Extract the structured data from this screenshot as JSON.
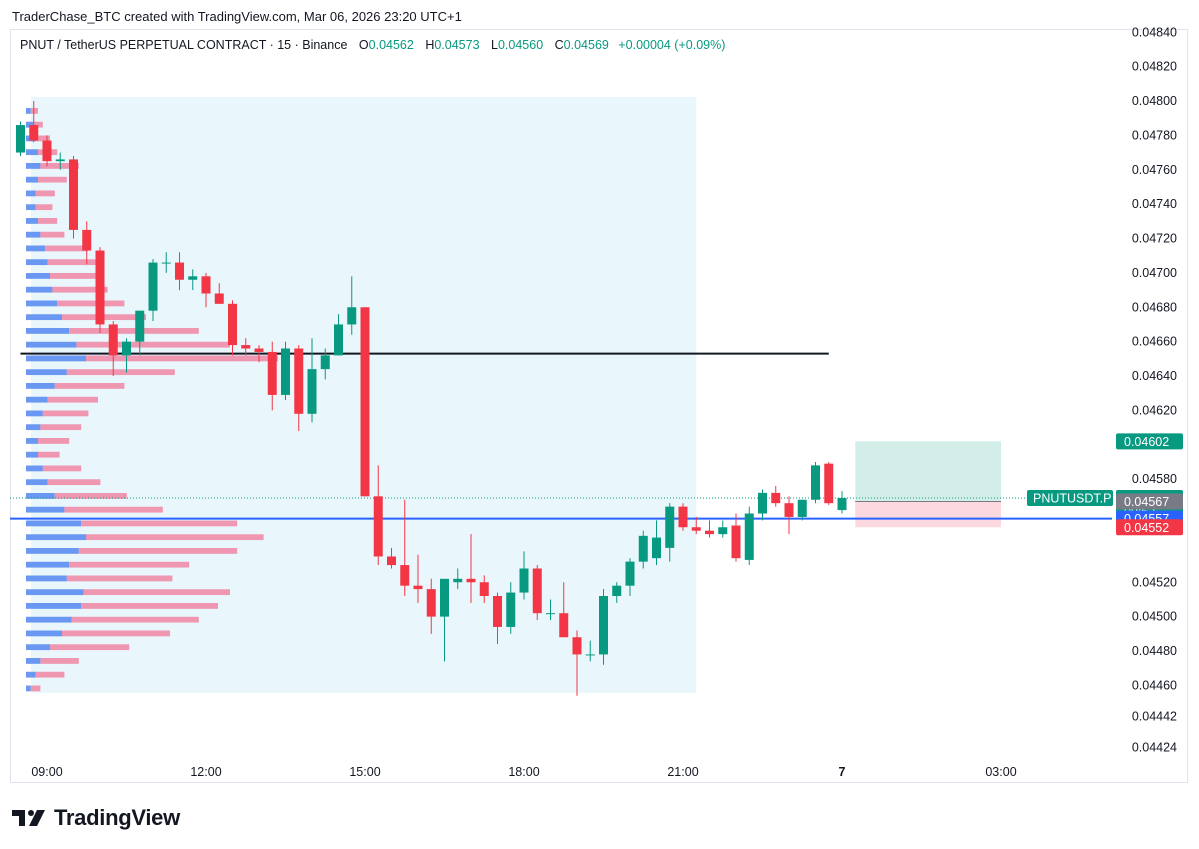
{
  "header": {
    "credit": "TraderChase_BTC created with TradingView.com, Mar 06, 2026 23:20 UTC+1"
  },
  "legend": {
    "symbol": "PNUT / TetherUS PERPETUAL CONTRACT · 15 · Binance",
    "open_label": "O",
    "open": "0.04562",
    "high_label": "H",
    "high": "0.04573",
    "low_label": "L",
    "low": "0.04560",
    "close_label": "C",
    "close": "0.04569",
    "change": "+0.00004 (+0.09%)"
  },
  "footer": {
    "brand": "TradingView",
    "logo_icon": "tradingview-logo-icon"
  },
  "colors": {
    "up": "#089981",
    "down": "#f23645",
    "blue_line": "#2962ff",
    "profile_blue": "#5b8def",
    "profile_pink": "#f08ca8",
    "profile_bg": "#e9f6fb",
    "target_zone": "#d3eee9",
    "stop_zone": "#fbd9de",
    "grey_tag": "#787b86"
  },
  "chart_data": {
    "type": "candlestick",
    "symbol": "PNUT / TetherUS PERPETUAL CONTRACT",
    "timeframe": "15",
    "exchange": "Binance",
    "y_axis": {
      "ticks": [
        "0.04840",
        "0.04820",
        "0.04800",
        "0.04780",
        "0.04760",
        "0.04740",
        "0.04720",
        "0.04700",
        "0.04680",
        "0.04660",
        "0.04640",
        "0.04620",
        "0.04580",
        "0.04520",
        "0.04500",
        "0.04480",
        "0.04460",
        "0.04442",
        "0.04424"
      ],
      "ylim": [
        0.04424,
        0.0484
      ]
    },
    "x_axis": {
      "ticks": [
        {
          "label": "09:00",
          "hours": 0
        },
        {
          "label": "12:00",
          "hours": 3
        },
        {
          "label": "15:00",
          "hours": 6
        },
        {
          "label": "18:00",
          "hours": 9
        },
        {
          "label": "21:00",
          "hours": 12
        },
        {
          "label": "7",
          "hours": 15,
          "bold": true
        },
        {
          "label": "03:00",
          "hours": 18
        }
      ]
    },
    "candles": [
      {
        "t": -0.5,
        "o": 0.0477,
        "h": 0.04788,
        "l": 0.04768,
        "c": 0.04786
      },
      {
        "t": -0.25,
        "o": 0.04786,
        "h": 0.048,
        "l": 0.04776,
        "c": 0.04777
      },
      {
        "t": 0,
        "o": 0.04777,
        "h": 0.0478,
        "l": 0.04762,
        "c": 0.04765
      },
      {
        "t": 0.25,
        "o": 0.04765,
        "h": 0.0477,
        "l": 0.0476,
        "c": 0.04766
      },
      {
        "t": 0.5,
        "o": 0.04766,
        "h": 0.04768,
        "l": 0.0472,
        "c": 0.04725
      },
      {
        "t": 0.75,
        "o": 0.04725,
        "h": 0.0473,
        "l": 0.04705,
        "c": 0.04713
      },
      {
        "t": 1,
        "o": 0.04713,
        "h": 0.04715,
        "l": 0.04665,
        "c": 0.0467
      },
      {
        "t": 1.25,
        "o": 0.0467,
        "h": 0.04672,
        "l": 0.0464,
        "c": 0.04652
      },
      {
        "t": 1.5,
        "o": 0.04652,
        "h": 0.04662,
        "l": 0.04642,
        "c": 0.0466
      },
      {
        "t": 1.75,
        "o": 0.0466,
        "h": 0.04678,
        "l": 0.04652,
        "c": 0.04678
      },
      {
        "t": 2,
        "o": 0.04678,
        "h": 0.04708,
        "l": 0.04672,
        "c": 0.04706
      },
      {
        "t": 2.25,
        "o": 0.04706,
        "h": 0.04712,
        "l": 0.047,
        "c": 0.04706
      },
      {
        "t": 2.5,
        "o": 0.04706,
        "h": 0.04712,
        "l": 0.0469,
        "c": 0.04696
      },
      {
        "t": 2.75,
        "o": 0.04696,
        "h": 0.04702,
        "l": 0.0469,
        "c": 0.04698
      },
      {
        "t": 3,
        "o": 0.04698,
        "h": 0.047,
        "l": 0.0468,
        "c": 0.04688
      },
      {
        "t": 3.25,
        "o": 0.04688,
        "h": 0.04694,
        "l": 0.04682,
        "c": 0.04682
      },
      {
        "t": 3.5,
        "o": 0.04682,
        "h": 0.04684,
        "l": 0.04652,
        "c": 0.04658
      },
      {
        "t": 3.75,
        "o": 0.04658,
        "h": 0.04662,
        "l": 0.04652,
        "c": 0.04656
      },
      {
        "t": 4,
        "o": 0.04656,
        "h": 0.04658,
        "l": 0.04648,
        "c": 0.04654
      },
      {
        "t": 4.25,
        "o": 0.04654,
        "h": 0.0466,
        "l": 0.0462,
        "c": 0.04629
      },
      {
        "t": 4.5,
        "o": 0.04629,
        "h": 0.0466,
        "l": 0.04626,
        "c": 0.04656
      },
      {
        "t": 4.75,
        "o": 0.04656,
        "h": 0.04658,
        "l": 0.04608,
        "c": 0.04618
      },
      {
        "t": 5,
        "o": 0.04618,
        "h": 0.04662,
        "l": 0.04613,
        "c": 0.04644
      },
      {
        "t": 5.25,
        "o": 0.04644,
        "h": 0.04656,
        "l": 0.04638,
        "c": 0.04652
      },
      {
        "t": 5.5,
        "o": 0.04652,
        "h": 0.04676,
        "l": 0.04652,
        "c": 0.0467
      },
      {
        "t": 5.75,
        "o": 0.0467,
        "h": 0.04698,
        "l": 0.04664,
        "c": 0.0468
      },
      {
        "t": 6,
        "o": 0.0468,
        "h": 0.0468,
        "l": 0.0457,
        "c": 0.0457
      },
      {
        "t": 6.25,
        "o": 0.0457,
        "h": 0.04588,
        "l": 0.0453,
        "c": 0.04535
      },
      {
        "t": 6.5,
        "o": 0.04535,
        "h": 0.0454,
        "l": 0.04528,
        "c": 0.0453
      },
      {
        "t": 6.75,
        "o": 0.0453,
        "h": 0.04568,
        "l": 0.04512,
        "c": 0.04518
      },
      {
        "t": 7,
        "o": 0.04518,
        "h": 0.04536,
        "l": 0.04508,
        "c": 0.04516
      },
      {
        "t": 7.25,
        "o": 0.04516,
        "h": 0.04522,
        "l": 0.0449,
        "c": 0.045
      },
      {
        "t": 7.5,
        "o": 0.045,
        "h": 0.04522,
        "l": 0.04474,
        "c": 0.04522
      },
      {
        "t": 7.75,
        "o": 0.0452,
        "h": 0.04528,
        "l": 0.04516,
        "c": 0.04522
      },
      {
        "t": 8,
        "o": 0.04522,
        "h": 0.04548,
        "l": 0.04508,
        "c": 0.0452
      },
      {
        "t": 8.25,
        "o": 0.0452,
        "h": 0.04524,
        "l": 0.04508,
        "c": 0.04512
      },
      {
        "t": 8.5,
        "o": 0.04512,
        "h": 0.04514,
        "l": 0.04484,
        "c": 0.04494
      },
      {
        "t": 8.75,
        "o": 0.04494,
        "h": 0.0452,
        "l": 0.0449,
        "c": 0.04514
      },
      {
        "t": 9,
        "o": 0.04514,
        "h": 0.04538,
        "l": 0.0451,
        "c": 0.04528
      },
      {
        "t": 9.25,
        "o": 0.04528,
        "h": 0.0453,
        "l": 0.04498,
        "c": 0.04502
      },
      {
        "t": 9.5,
        "o": 0.04502,
        "h": 0.0451,
        "l": 0.04498,
        "c": 0.04502
      },
      {
        "t": 9.75,
        "o": 0.04502,
        "h": 0.0452,
        "l": 0.0449,
        "c": 0.04488
      },
      {
        "t": 10,
        "o": 0.04488,
        "h": 0.04492,
        "l": 0.04454,
        "c": 0.04478
      },
      {
        "t": 10.25,
        "o": 0.04478,
        "h": 0.04486,
        "l": 0.04474,
        "c": 0.04478
      },
      {
        "t": 10.5,
        "o": 0.04478,
        "h": 0.04516,
        "l": 0.04472,
        "c": 0.04512
      },
      {
        "t": 10.75,
        "o": 0.04512,
        "h": 0.0452,
        "l": 0.04508,
        "c": 0.04518
      },
      {
        "t": 11,
        "o": 0.04518,
        "h": 0.04534,
        "l": 0.04512,
        "c": 0.04532
      },
      {
        "t": 11.25,
        "o": 0.04532,
        "h": 0.0455,
        "l": 0.04528,
        "c": 0.04547
      },
      {
        "t": 11.5,
        "o": 0.04534,
        "h": 0.04556,
        "l": 0.0453,
        "c": 0.04546
      },
      {
        "t": 11.75,
        "o": 0.0454,
        "h": 0.04566,
        "l": 0.04532,
        "c": 0.04564
      },
      {
        "t": 12,
        "o": 0.04564,
        "h": 0.04566,
        "l": 0.0455,
        "c": 0.04552
      },
      {
        "t": 12.25,
        "o": 0.04552,
        "h": 0.04558,
        "l": 0.04548,
        "c": 0.0455
      },
      {
        "t": 12.5,
        "o": 0.0455,
        "h": 0.04556,
        "l": 0.04546,
        "c": 0.04548
      },
      {
        "t": 12.75,
        "o": 0.04548,
        "h": 0.04556,
        "l": 0.04546,
        "c": 0.04552
      },
      {
        "t": 13,
        "o": 0.04553,
        "h": 0.0456,
        "l": 0.04532,
        "c": 0.04534
      },
      {
        "t": 13.25,
        "o": 0.04533,
        "h": 0.04564,
        "l": 0.0453,
        "c": 0.0456
      },
      {
        "t": 13.5,
        "o": 0.0456,
        "h": 0.04574,
        "l": 0.04556,
        "c": 0.04572
      },
      {
        "t": 13.75,
        "o": 0.04572,
        "h": 0.04576,
        "l": 0.04564,
        "c": 0.04566
      },
      {
        "t": 14,
        "o": 0.04566,
        "h": 0.0457,
        "l": 0.04548,
        "c": 0.04558
      },
      {
        "t": 14.25,
        "o": 0.04558,
        "h": 0.04568,
        "l": 0.04556,
        "c": 0.04568
      },
      {
        "t": 14.5,
        "o": 0.04568,
        "h": 0.0459,
        "l": 0.04566,
        "c": 0.04588
      },
      {
        "t": 14.75,
        "o": 0.04589,
        "h": 0.0459,
        "l": 0.04565,
        "c": 0.04566
      },
      {
        "t": 15,
        "o": 0.04562,
        "h": 0.04573,
        "l": 0.0456,
        "c": 0.04569
      }
    ],
    "volume_profile": {
      "range_hours": [
        -0.3,
        12.25
      ],
      "range_prices": [
        0.04458,
        0.048
      ],
      "rows": [
        {
          "p": 0.04794,
          "b": 0.4,
          "s": 0.6
        },
        {
          "p": 0.04786,
          "b": 0.6,
          "s": 0.8
        },
        {
          "p": 0.04778,
          "b": 0.8,
          "s": 1.2
        },
        {
          "p": 0.0477,
          "b": 1.0,
          "s": 1.6
        },
        {
          "p": 0.04762,
          "b": 1.2,
          "s": 3.2
        },
        {
          "p": 0.04754,
          "b": 1.0,
          "s": 2.4
        },
        {
          "p": 0.04746,
          "b": 0.8,
          "s": 1.6
        },
        {
          "p": 0.04738,
          "b": 0.8,
          "s": 1.4
        },
        {
          "p": 0.0473,
          "b": 1.0,
          "s": 1.6
        },
        {
          "p": 0.04722,
          "b": 1.2,
          "s": 2.0
        },
        {
          "p": 0.04714,
          "b": 1.6,
          "s": 3.6
        },
        {
          "p": 0.04706,
          "b": 1.8,
          "s": 4.0
        },
        {
          "p": 0.04698,
          "b": 2.0,
          "s": 4.2
        },
        {
          "p": 0.0469,
          "b": 2.2,
          "s": 4.6
        },
        {
          "p": 0.04682,
          "b": 2.6,
          "s": 5.6
        },
        {
          "p": 0.04674,
          "b": 3.0,
          "s": 7.0
        },
        {
          "p": 0.04666,
          "b": 3.6,
          "s": 10.8
        },
        {
          "p": 0.04658,
          "b": 4.2,
          "s": 12.8
        },
        {
          "p": 0.0465,
          "b": 5.0,
          "s": 16.0
        },
        {
          "p": 0.04642,
          "b": 3.4,
          "s": 9.0
        },
        {
          "p": 0.04634,
          "b": 2.4,
          "s": 5.8
        },
        {
          "p": 0.04626,
          "b": 1.8,
          "s": 4.2
        },
        {
          "p": 0.04618,
          "b": 1.4,
          "s": 3.8
        },
        {
          "p": 0.0461,
          "b": 1.2,
          "s": 3.4
        },
        {
          "p": 0.04602,
          "b": 1.0,
          "s": 2.6
        },
        {
          "p": 0.04594,
          "b": 1.0,
          "s": 1.8
        },
        {
          "p": 0.04586,
          "b": 1.4,
          "s": 3.2
        },
        {
          "p": 0.04578,
          "b": 1.8,
          "s": 4.4
        },
        {
          "p": 0.0457,
          "b": 2.4,
          "s": 6.0
        },
        {
          "p": 0.04562,
          "b": 3.2,
          "s": 8.2
        },
        {
          "p": 0.04554,
          "b": 4.6,
          "s": 13.0
        },
        {
          "p": 0.04546,
          "b": 5.0,
          "s": 14.8
        },
        {
          "p": 0.04538,
          "b": 4.4,
          "s": 13.2
        },
        {
          "p": 0.0453,
          "b": 3.6,
          "s": 10.0
        },
        {
          "p": 0.04522,
          "b": 3.4,
          "s": 8.8
        },
        {
          "p": 0.04514,
          "b": 4.8,
          "s": 12.2
        },
        {
          "p": 0.04506,
          "b": 4.6,
          "s": 11.4
        },
        {
          "p": 0.04498,
          "b": 3.8,
          "s": 10.6
        },
        {
          "p": 0.0449,
          "b": 3.0,
          "s": 9.0
        },
        {
          "p": 0.04482,
          "b": 2.0,
          "s": 6.6
        },
        {
          "p": 0.04474,
          "b": 1.2,
          "s": 3.2
        },
        {
          "p": 0.04466,
          "b": 0.8,
          "s": 2.4
        },
        {
          "p": 0.04458,
          "b": 0.4,
          "s": 0.8
        }
      ]
    },
    "horizontal_lines": [
      {
        "name": "resistance-line",
        "price": 0.04653,
        "color": "#131722",
        "from_hours": -0.5,
        "to_hours": 14.75
      },
      {
        "name": "support-line",
        "price": 0.04557,
        "color": "#2962ff",
        "from_hours": -1,
        "to_hours": 21
      }
    ],
    "position_tool": {
      "entry": 0.04567,
      "target": 0.04602,
      "stop": 0.04552,
      "from_hours": 15.25,
      "to_hours": 18
    },
    "price_tags": [
      {
        "name": "target-price-tag",
        "text": "0.04602",
        "price": 0.04602,
        "color": "#089981"
      },
      {
        "name": "last-price-tag",
        "text": "0.04569",
        "price": 0.04569,
        "color": "#089981",
        "countdown": "09:53",
        "symbol_label": "PNUTUSDT.P"
      },
      {
        "name": "entry-price-tag",
        "text": "0.04567",
        "price": 0.04567,
        "color": "#787b86"
      },
      {
        "name": "support-price-tag",
        "text": "0.04557",
        "price": 0.04557,
        "color": "#2962ff"
      },
      {
        "name": "stop-price-tag",
        "text": "0.04552",
        "price": 0.04552,
        "color": "#f23645"
      }
    ]
  }
}
